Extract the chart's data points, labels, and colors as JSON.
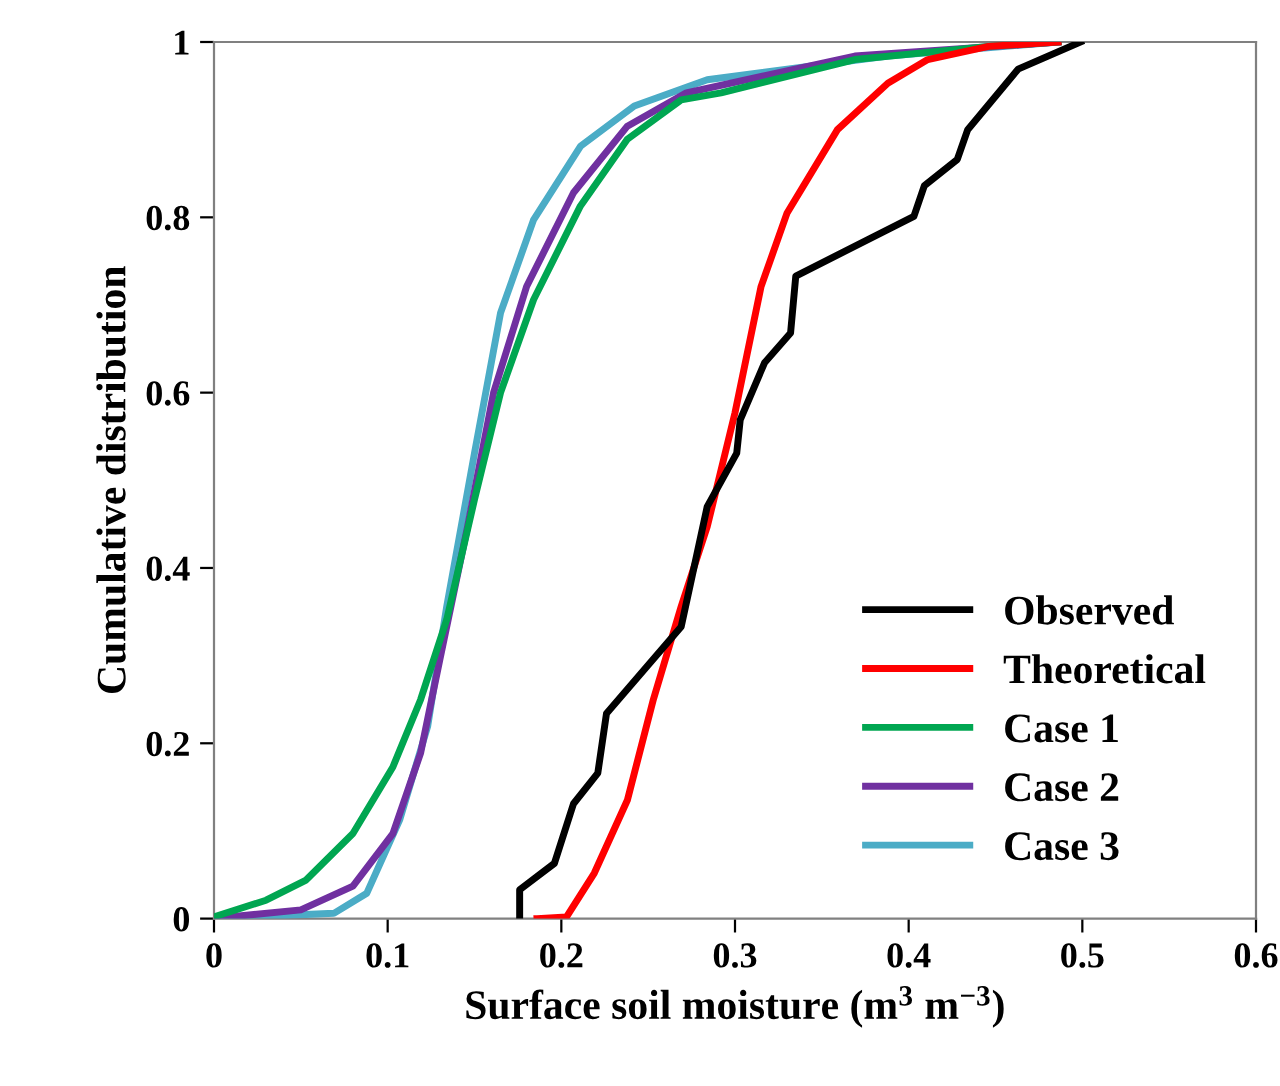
{
  "chart_data": {
    "type": "line",
    "xlabel": "Surface soil moisture (m$^{3}$ m$^{−3}$)",
    "ylabel": "Cumulative distribution",
    "xlim": [
      0,
      0.6
    ],
    "ylim": [
      0,
      1
    ],
    "xticks": [
      0,
      0.1,
      0.2,
      0.3,
      0.4,
      0.5,
      0.6
    ],
    "yticks": [
      0,
      0.2,
      0.4,
      0.6,
      0.8,
      1
    ],
    "grid": false,
    "legend": "bottom right",
    "marker": "none",
    "line_style": "solid",
    "series": [
      {
        "name": "Observed",
        "color": "#000000",
        "x": [
          0.176,
          0.176,
          0.196,
          0.207,
          0.221,
          0.226,
          0.269,
          0.284,
          0.301,
          0.303,
          0.317,
          0.332,
          0.335,
          0.403,
          0.409,
          0.428,
          0.434,
          0.463,
          0.499
        ],
        "values": [
          0,
          0.033,
          0.063,
          0.131,
          0.166,
          0.234,
          0.333,
          0.47,
          0.531,
          0.569,
          0.634,
          0.668,
          0.733,
          0.801,
          0.836,
          0.866,
          0.9,
          0.969,
          1.0
        ]
      },
      {
        "name": "Theoretical",
        "color": "#ff0000",
        "x": [
          0.186,
          0.203,
          0.219,
          0.238,
          0.253,
          0.269,
          0.284,
          0.3,
          0.315,
          0.33,
          0.359,
          0.388,
          0.411,
          0.446,
          0.486
        ],
        "values": [
          0,
          0.002,
          0.052,
          0.135,
          0.25,
          0.356,
          0.447,
          0.577,
          0.721,
          0.805,
          0.9,
          0.953,
          0.98,
          0.995,
          1.0
        ]
      },
      {
        "name": "Case 1",
        "color": "#00a651",
        "x": [
          0,
          0.03,
          0.053,
          0.08,
          0.103,
          0.119,
          0.134,
          0.15,
          0.165,
          0.184,
          0.211,
          0.238,
          0.269,
          0.292,
          0.369,
          0.446,
          0.486
        ],
        "values": [
          0.002,
          0.021,
          0.044,
          0.097,
          0.173,
          0.25,
          0.341,
          0.478,
          0.6,
          0.706,
          0.813,
          0.889,
          0.934,
          0.942,
          0.98,
          0.995,
          1.0
        ]
      },
      {
        "name": "Case 2",
        "color": "#7030a0",
        "x": [
          0,
          0.05,
          0.08,
          0.103,
          0.119,
          0.13,
          0.146,
          0.161,
          0.18,
          0.207,
          0.238,
          0.272,
          0.369,
          0.486
        ],
        "values": [
          0,
          0.01,
          0.037,
          0.097,
          0.189,
          0.295,
          0.447,
          0.6,
          0.721,
          0.828,
          0.904,
          0.942,
          0.984,
          1.0
        ]
      },
      {
        "name": "Case 3",
        "color": "#4bacc6",
        "x": [
          0,
          0.069,
          0.088,
          0.107,
          0.123,
          0.134,
          0.15,
          0.165,
          0.184,
          0.211,
          0.242,
          0.284,
          0.388,
          0.486
        ],
        "values": [
          0,
          0.006,
          0.029,
          0.113,
          0.219,
          0.356,
          0.531,
          0.691,
          0.797,
          0.881,
          0.927,
          0.957,
          0.984,
          1.0
        ]
      }
    ]
  }
}
